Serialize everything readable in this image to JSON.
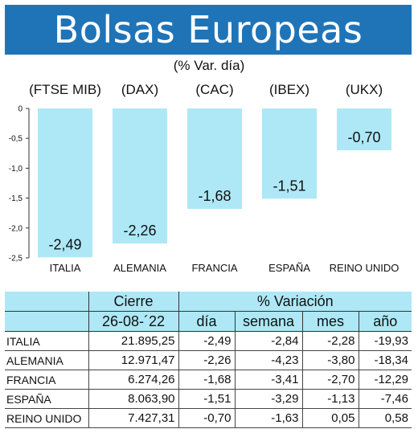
{
  "title": "Bolsas Europeas",
  "subtitle": "(% Var. día)",
  "colors": {
    "banner": "#1f74b8",
    "bar": "#aee8f6",
    "header_fill": "#aee8f6"
  },
  "chart_data": {
    "type": "bar",
    "indices": [
      "(FTSE MIB)",
      "(DAX)",
      "(CAC)",
      "(IBEX)",
      "(UKX)"
    ],
    "categories": [
      "ITALIA",
      "ALEMANIA",
      "FRANCIA",
      "ESPAÑA",
      "REINO UNIDO"
    ],
    "values": [
      -2.49,
      -2.26,
      -1.68,
      -1.51,
      -0.7
    ],
    "value_labels": [
      "-2,49",
      "-2,26",
      "-1,68",
      "-1,51",
      "-0,70"
    ],
    "yticks": [
      0,
      -0.5,
      -1.0,
      -1.5,
      -2.0,
      -2.5
    ],
    "ytick_labels": [
      "0",
      "-0,5",
      "-1,0",
      "-1,5",
      "-2,0",
      "-2,5"
    ],
    "ylim": [
      -2.5,
      0
    ],
    "grid": false
  },
  "table": {
    "group_headers": {
      "cierre": "Cierre",
      "variacion": "% Variación"
    },
    "date": "26-08-´22",
    "sub_headers": [
      "día",
      "semana",
      "mes",
      "año"
    ],
    "rows": [
      {
        "country": "ITALIA",
        "cierre": "21.895,25",
        "dia": "-2,49",
        "semana": "-2,84",
        "mes": "-2,28",
        "ano": "-19,93"
      },
      {
        "country": "ALEMANIA",
        "cierre": "12.971,47",
        "dia": "-2,26",
        "semana": "-4,23",
        "mes": "-3,80",
        "ano": "-18,34"
      },
      {
        "country": "FRANCIA",
        "cierre": "6.274,26",
        "dia": "-1,68",
        "semana": "-3,41",
        "mes": "-2,70",
        "ano": "-12,29"
      },
      {
        "country": "ESPAÑA",
        "cierre": "8.063,90",
        "dia": "-1,51",
        "semana": "-3,29",
        "mes": "-1,13",
        "ano": "-7,46"
      },
      {
        "country": "REINO UNIDO",
        "cierre": "7.427,31",
        "dia": "-0,70",
        "semana": "-1,63",
        "mes": "0,05",
        "ano": "0,58"
      }
    ]
  }
}
